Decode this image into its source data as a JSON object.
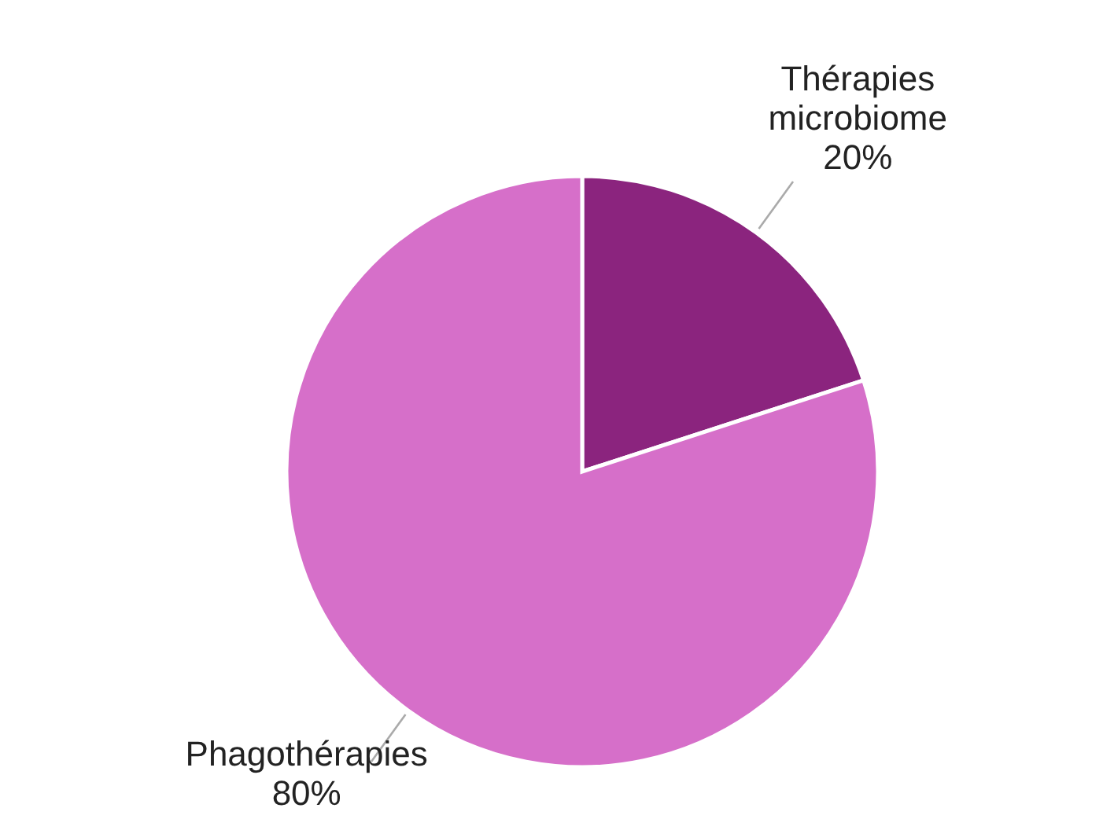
{
  "chart_data": {
    "type": "pie",
    "categories": [
      "Thérapies microbiome",
      "Phagothérapies"
    ],
    "values": [
      20,
      80
    ],
    "colors": [
      "#8b247e",
      "#d66fc9"
    ],
    "value_labels": [
      "20%",
      "80%"
    ]
  }
}
